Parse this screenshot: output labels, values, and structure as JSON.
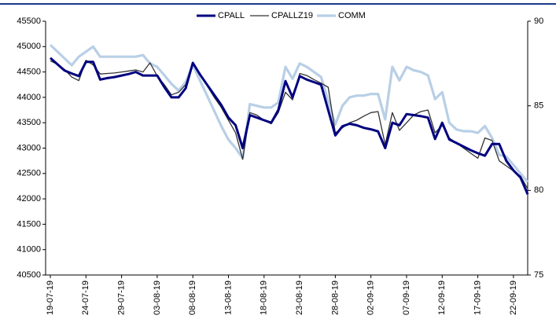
{
  "chart_data": {
    "type": "line",
    "categories": [
      "19-07-19",
      null,
      null,
      null,
      null,
      "24-07-19",
      null,
      null,
      null,
      null,
      "29-07-19",
      null,
      null,
      null,
      null,
      "03-08-19",
      null,
      null,
      null,
      null,
      "08-08-19",
      null,
      null,
      null,
      null,
      "13-08-19",
      null,
      null,
      null,
      null,
      "18-08-19",
      null,
      null,
      null,
      null,
      "23-08-19",
      null,
      null,
      null,
      null,
      "28-08-19",
      null,
      null,
      null,
      null,
      "02-09-19",
      null,
      null,
      null,
      null,
      "07-09-19",
      null,
      null,
      null,
      null,
      "12-09-19",
      null,
      null,
      null,
      null,
      "17-09-19",
      null,
      null,
      null,
      null,
      "22-09-19",
      null,
      null
    ],
    "series": [
      {
        "name": "CPALL",
        "color": "#000080",
        "values": [
          44775,
          44650,
          44530,
          44470,
          44420,
          44700,
          44700,
          44350,
          44380,
          44400,
          44430,
          44460,
          44500,
          44430,
          44430,
          44430,
          44200,
          44000,
          44000,
          44180,
          44680,
          44450,
          44250,
          44050,
          43850,
          43600,
          43450,
          43000,
          43650,
          43600,
          43550,
          43500,
          43750,
          44320,
          44000,
          44420,
          44350,
          44300,
          44250,
          43750,
          43250,
          43430,
          43480,
          43450,
          43400,
          43370,
          43330,
          43000,
          43500,
          43450,
          43670,
          43650,
          43630,
          43600,
          43180,
          43500,
          43170,
          43100,
          43030,
          42960,
          42900,
          42850,
          43080,
          43080,
          42750,
          42560,
          42420,
          42090
        ]
      },
      {
        "name": "CPALLZ19",
        "color": "#333333",
        "values": [
          44720,
          44650,
          44550,
          44400,
          44330,
          44730,
          44640,
          44460,
          44470,
          44480,
          44500,
          44520,
          44540,
          44500,
          44680,
          44420,
          44250,
          44050,
          44100,
          44250,
          44680,
          44450,
          44230,
          44000,
          43800,
          43550,
          43300,
          42780,
          43700,
          43650,
          43550,
          43480,
          43700,
          44100,
          43950,
          44470,
          44430,
          44350,
          44280,
          44200,
          43300,
          43400,
          43500,
          43550,
          43630,
          43700,
          43720,
          43070,
          43700,
          43350,
          43500,
          43650,
          43720,
          43750,
          43300,
          43450,
          43200,
          43100,
          43000,
          42900,
          42800,
          43200,
          43150,
          42750,
          42650,
          42550,
          42450,
          42200
        ]
      },
      {
        "name": "COMM",
        "color": "#b8cfe6",
        "axis": "y2",
        "values": [
          88.6,
          88.2,
          87.8,
          87.4,
          87.9,
          88.2,
          88.5,
          87.9,
          87.9,
          87.9,
          87.9,
          87.9,
          87.9,
          88.0,
          87.5,
          87.3,
          86.8,
          86.3,
          85.9,
          86.4,
          87.4,
          86.5,
          85.6,
          84.7,
          83.8,
          83.0,
          82.5,
          81.9,
          85.1,
          85.0,
          84.9,
          84.9,
          85.2,
          87.3,
          86.6,
          87.5,
          87.3,
          87.0,
          86.7,
          85.3,
          83.9,
          85.0,
          85.5,
          85.6,
          85.6,
          85.7,
          85.7,
          84.2,
          87.3,
          86.5,
          87.3,
          87.1,
          87.0,
          86.8,
          85.4,
          85.8,
          84.0,
          83.6,
          83.5,
          83.5,
          83.4,
          83.8,
          83.1,
          82.1,
          82.0,
          81.5,
          81.0,
          80.5
        ]
      }
    ],
    "ylim": [
      40500,
      45500
    ],
    "yticks": [
      40500,
      41000,
      41500,
      42000,
      42500,
      43000,
      43500,
      44000,
      44500,
      45000,
      45500
    ],
    "y2lim": [
      75,
      90
    ],
    "y2ticks": [
      75,
      80,
      85,
      90
    ],
    "legend": "top"
  }
}
